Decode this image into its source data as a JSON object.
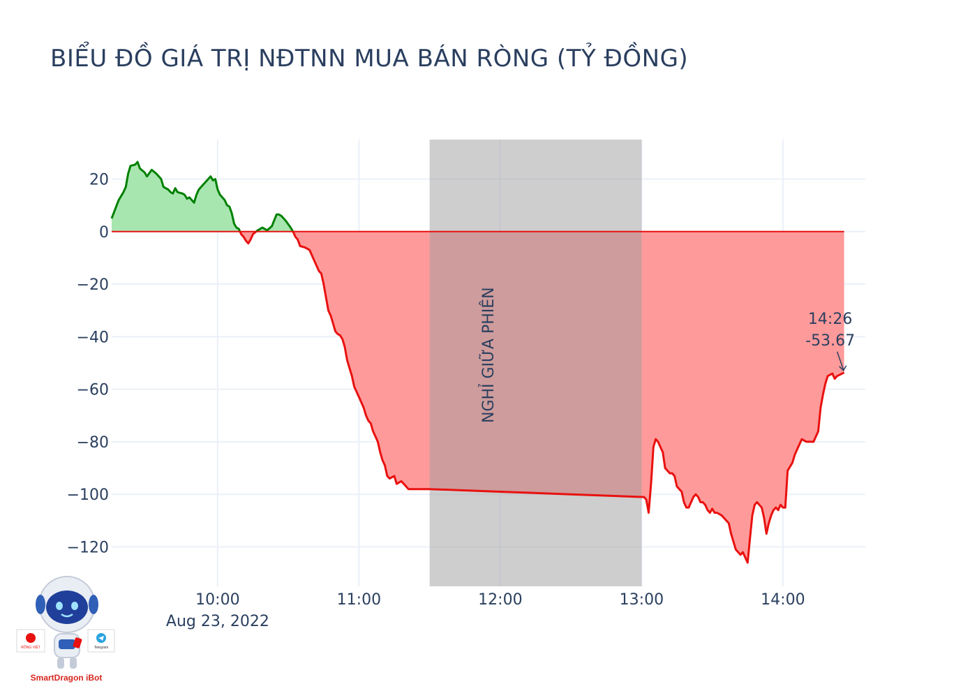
{
  "title": "BIỂU ĐỒ GIÁ TRỊ NĐTNN MUA BÁN RÒNG (TỶ ĐỒNG)",
  "chart_data": {
    "type": "area",
    "title": "BIỂU ĐỒ GIÁ TRỊ NĐTNN MUA BÁN RÒNG (TỶ ĐỒNG)",
    "xlabel": "",
    "ylabel": "",
    "date_label": "Aug 23, 2022",
    "x_ticks": [
      "10:00",
      "11:00",
      "12:00",
      "13:00",
      "14:00"
    ],
    "y_ticks": [
      20,
      0,
      -20,
      -40,
      -60,
      -80,
      -100,
      -120
    ],
    "y_tick_labels": [
      "20",
      "0",
      "−20",
      "−40",
      "−60",
      "−80",
      "−100",
      "−120"
    ],
    "x_range": [
      "09:15",
      "14:35"
    ],
    "y_range": [
      -135,
      35
    ],
    "grid": true,
    "positive_color": "#008000",
    "positive_fill": "#a8e6b0",
    "negative_color": "#e8110f",
    "negative_fill": "#ff9a9a",
    "break_band": {
      "start": "11:30",
      "end": "13:00",
      "label": "NGHỈ GIỮA PHIÊN",
      "color": "#9e9e9e"
    },
    "annotation": {
      "time": "14:26",
      "value_label": "-53.67",
      "value": -53.67
    },
    "points": [
      [
        "09:15",
        5
      ],
      [
        "09:18",
        12
      ],
      [
        "09:20",
        15
      ],
      [
        "09:21",
        17
      ],
      [
        "09:22",
        22
      ],
      [
        "09:23",
        25
      ],
      [
        "09:25",
        25.5
      ],
      [
        "09:26",
        26.5
      ],
      [
        "09:27",
        24
      ],
      [
        "09:29",
        22.5
      ],
      [
        "09:30",
        21
      ],
      [
        "09:32",
        23.5
      ],
      [
        "09:34",
        22
      ],
      [
        "09:36",
        20
      ],
      [
        "09:37",
        17
      ],
      [
        "09:39",
        16
      ],
      [
        "09:40",
        15
      ],
      [
        "09:41",
        14.5
      ],
      [
        "09:42",
        16.5
      ],
      [
        "09:43",
        15
      ],
      [
        "09:45",
        14.5
      ],
      [
        "09:46",
        14
      ],
      [
        "09:47",
        12.5
      ],
      [
        "09:48",
        13
      ],
      [
        "09:49",
        12
      ],
      [
        "09:50",
        11
      ],
      [
        "09:51",
        14
      ],
      [
        "09:52",
        16
      ],
      [
        "09:54",
        18
      ],
      [
        "09:56",
        20
      ],
      [
        "09:57",
        21
      ],
      [
        "09:58",
        19.5
      ],
      [
        "09:59",
        20
      ],
      [
        "10:00",
        16
      ],
      [
        "10:01",
        14
      ],
      [
        "10:02",
        13
      ],
      [
        "10:03",
        12
      ],
      [
        "10:04",
        10
      ],
      [
        "10:05",
        9.5
      ],
      [
        "10:06",
        7
      ],
      [
        "10:07",
        3
      ],
      [
        "10:08",
        1.5
      ],
      [
        "10:09",
        1
      ],
      [
        "10:10",
        -1
      ],
      [
        "10:11",
        -2
      ],
      [
        "10:12",
        -3.5
      ],
      [
        "10:13",
        -4.5
      ],
      [
        "10:14",
        -3
      ],
      [
        "10:15",
        -1
      ],
      [
        "10:17",
        0.5
      ],
      [
        "10:19",
        1.5
      ],
      [
        "10:21",
        0.5
      ],
      [
        "10:23",
        2
      ],
      [
        "10:25",
        6.5
      ],
      [
        "10:26",
        6.5
      ],
      [
        "10:27",
        6
      ],
      [
        "10:28",
        5
      ],
      [
        "10:29",
        4
      ],
      [
        "10:31",
        1.5
      ],
      [
        "10:32",
        0
      ],
      [
        "10:33",
        -2
      ],
      [
        "10:34",
        -3
      ],
      [
        "10:35",
        -5.5
      ],
      [
        "10:37",
        -6
      ],
      [
        "10:39",
        -7
      ],
      [
        "10:40",
        -9
      ],
      [
        "10:41",
        -11
      ],
      [
        "10:42",
        -13
      ],
      [
        "10:43",
        -15
      ],
      [
        "10:44",
        -16
      ],
      [
        "10:45",
        -20
      ],
      [
        "10:46",
        -25
      ],
      [
        "10:47",
        -30
      ],
      [
        "10:48",
        -32
      ],
      [
        "10:49",
        -35
      ],
      [
        "10:50",
        -38
      ],
      [
        "10:51",
        -39
      ],
      [
        "10:52",
        -39.5
      ],
      [
        "10:53",
        -41
      ],
      [
        "10:54",
        -44
      ],
      [
        "10:55",
        -49
      ],
      [
        "10:56",
        -52
      ],
      [
        "10:57",
        -55
      ],
      [
        "10:58",
        -59
      ],
      [
        "10:59",
        -61
      ],
      [
        "11:00",
        -63
      ],
      [
        "11:01",
        -65
      ],
      [
        "11:02",
        -67
      ],
      [
        "11:03",
        -70
      ],
      [
        "11:04",
        -72
      ],
      [
        "11:05",
        -73
      ],
      [
        "11:06",
        -76
      ],
      [
        "11:07",
        -78
      ],
      [
        "11:08",
        -80
      ],
      [
        "11:09",
        -84
      ],
      [
        "11:10",
        -87
      ],
      [
        "11:11",
        -89
      ],
      [
        "11:12",
        -93
      ],
      [
        "11:13",
        -94
      ],
      [
        "11:15",
        -93
      ],
      [
        "11:16",
        -96
      ],
      [
        "11:18",
        -95
      ],
      [
        "11:20",
        -97
      ],
      [
        "11:21",
        -98
      ],
      [
        "11:25",
        -98
      ],
      [
        "11:30",
        -98
      ],
      [
        "12:00",
        -99
      ],
      [
        "12:30",
        -100
      ],
      [
        "13:00",
        -101
      ],
      [
        "13:01",
        -101
      ],
      [
        "13:02",
        -102
      ],
      [
        "13:03",
        -107
      ],
      [
        "13:04",
        -96
      ],
      [
        "13:05",
        -82
      ],
      [
        "13:06",
        -79
      ],
      [
        "13:07",
        -80
      ],
      [
        "13:08",
        -82
      ],
      [
        "13:09",
        -84
      ],
      [
        "13:10",
        -90
      ],
      [
        "13:11",
        -91
      ],
      [
        "13:12",
        -92
      ],
      [
        "13:13",
        -92
      ],
      [
        "13:14",
        -93
      ],
      [
        "13:15",
        -97
      ],
      [
        "13:16",
        -98
      ],
      [
        "13:17",
        -99
      ],
      [
        "13:18",
        -103
      ],
      [
        "13:19",
        -105
      ],
      [
        "13:20",
        -105
      ],
      [
        "13:21",
        -103
      ],
      [
        "13:22",
        -101
      ],
      [
        "13:23",
        -100
      ],
      [
        "13:24",
        -101
      ],
      [
        "13:25",
        -103
      ],
      [
        "13:26",
        -103
      ],
      [
        "13:27",
        -104
      ],
      [
        "13:28",
        -106
      ],
      [
        "13:29",
        -107
      ],
      [
        "13:30",
        -105.5
      ],
      [
        "13:31",
        -107
      ],
      [
        "13:32",
        -107
      ],
      [
        "13:34",
        -108
      ],
      [
        "13:35",
        -109
      ],
      [
        "13:36",
        -110
      ],
      [
        "13:37",
        -111
      ],
      [
        "13:38",
        -115
      ],
      [
        "13:39",
        -118
      ],
      [
        "13:40",
        -121
      ],
      [
        "13:41",
        -122
      ],
      [
        "13:42",
        -123
      ],
      [
        "13:43",
        -122
      ],
      [
        "13:44",
        -124
      ],
      [
        "13:45",
        -126
      ],
      [
        "13:46",
        -117
      ],
      [
        "13:47",
        -108
      ],
      [
        "13:48",
        -104
      ],
      [
        "13:49",
        -103
      ],
      [
        "13:50",
        -104
      ],
      [
        "13:51",
        -105
      ],
      [
        "13:52",
        -109
      ],
      [
        "13:53",
        -115
      ],
      [
        "13:54",
        -111
      ],
      [
        "13:55",
        -108
      ],
      [
        "13:56",
        -106
      ],
      [
        "13:57",
        -105
      ],
      [
        "13:58",
        -106
      ],
      [
        "13:59",
        -104
      ],
      [
        "14:00",
        -105
      ],
      [
        "14:01",
        -105
      ],
      [
        "14:02",
        -91
      ],
      [
        "14:04",
        -88
      ],
      [
        "14:05",
        -85
      ],
      [
        "14:06",
        -83
      ],
      [
        "14:07",
        -81
      ],
      [
        "14:08",
        -79
      ],
      [
        "14:10",
        -80
      ],
      [
        "14:12",
        -80
      ],
      [
        "14:13",
        -80
      ],
      [
        "14:14",
        -78
      ],
      [
        "14:15",
        -76
      ],
      [
        "14:16",
        -67
      ],
      [
        "14:17",
        -62
      ],
      [
        "14:18",
        -58
      ],
      [
        "14:19",
        -55
      ],
      [
        "14:20",
        -54.5
      ],
      [
        "14:21",
        -54
      ],
      [
        "14:22",
        -56
      ],
      [
        "14:23",
        -55
      ],
      [
        "14:26",
        -53.67
      ]
    ]
  },
  "logo": {
    "brand_text": "SmartDragon iBot",
    "badge_left": "RỒNG VIỆT",
    "badge_right": "Telegram",
    "icons": [
      "robot-mascot-icon",
      "telegram-icon"
    ]
  }
}
